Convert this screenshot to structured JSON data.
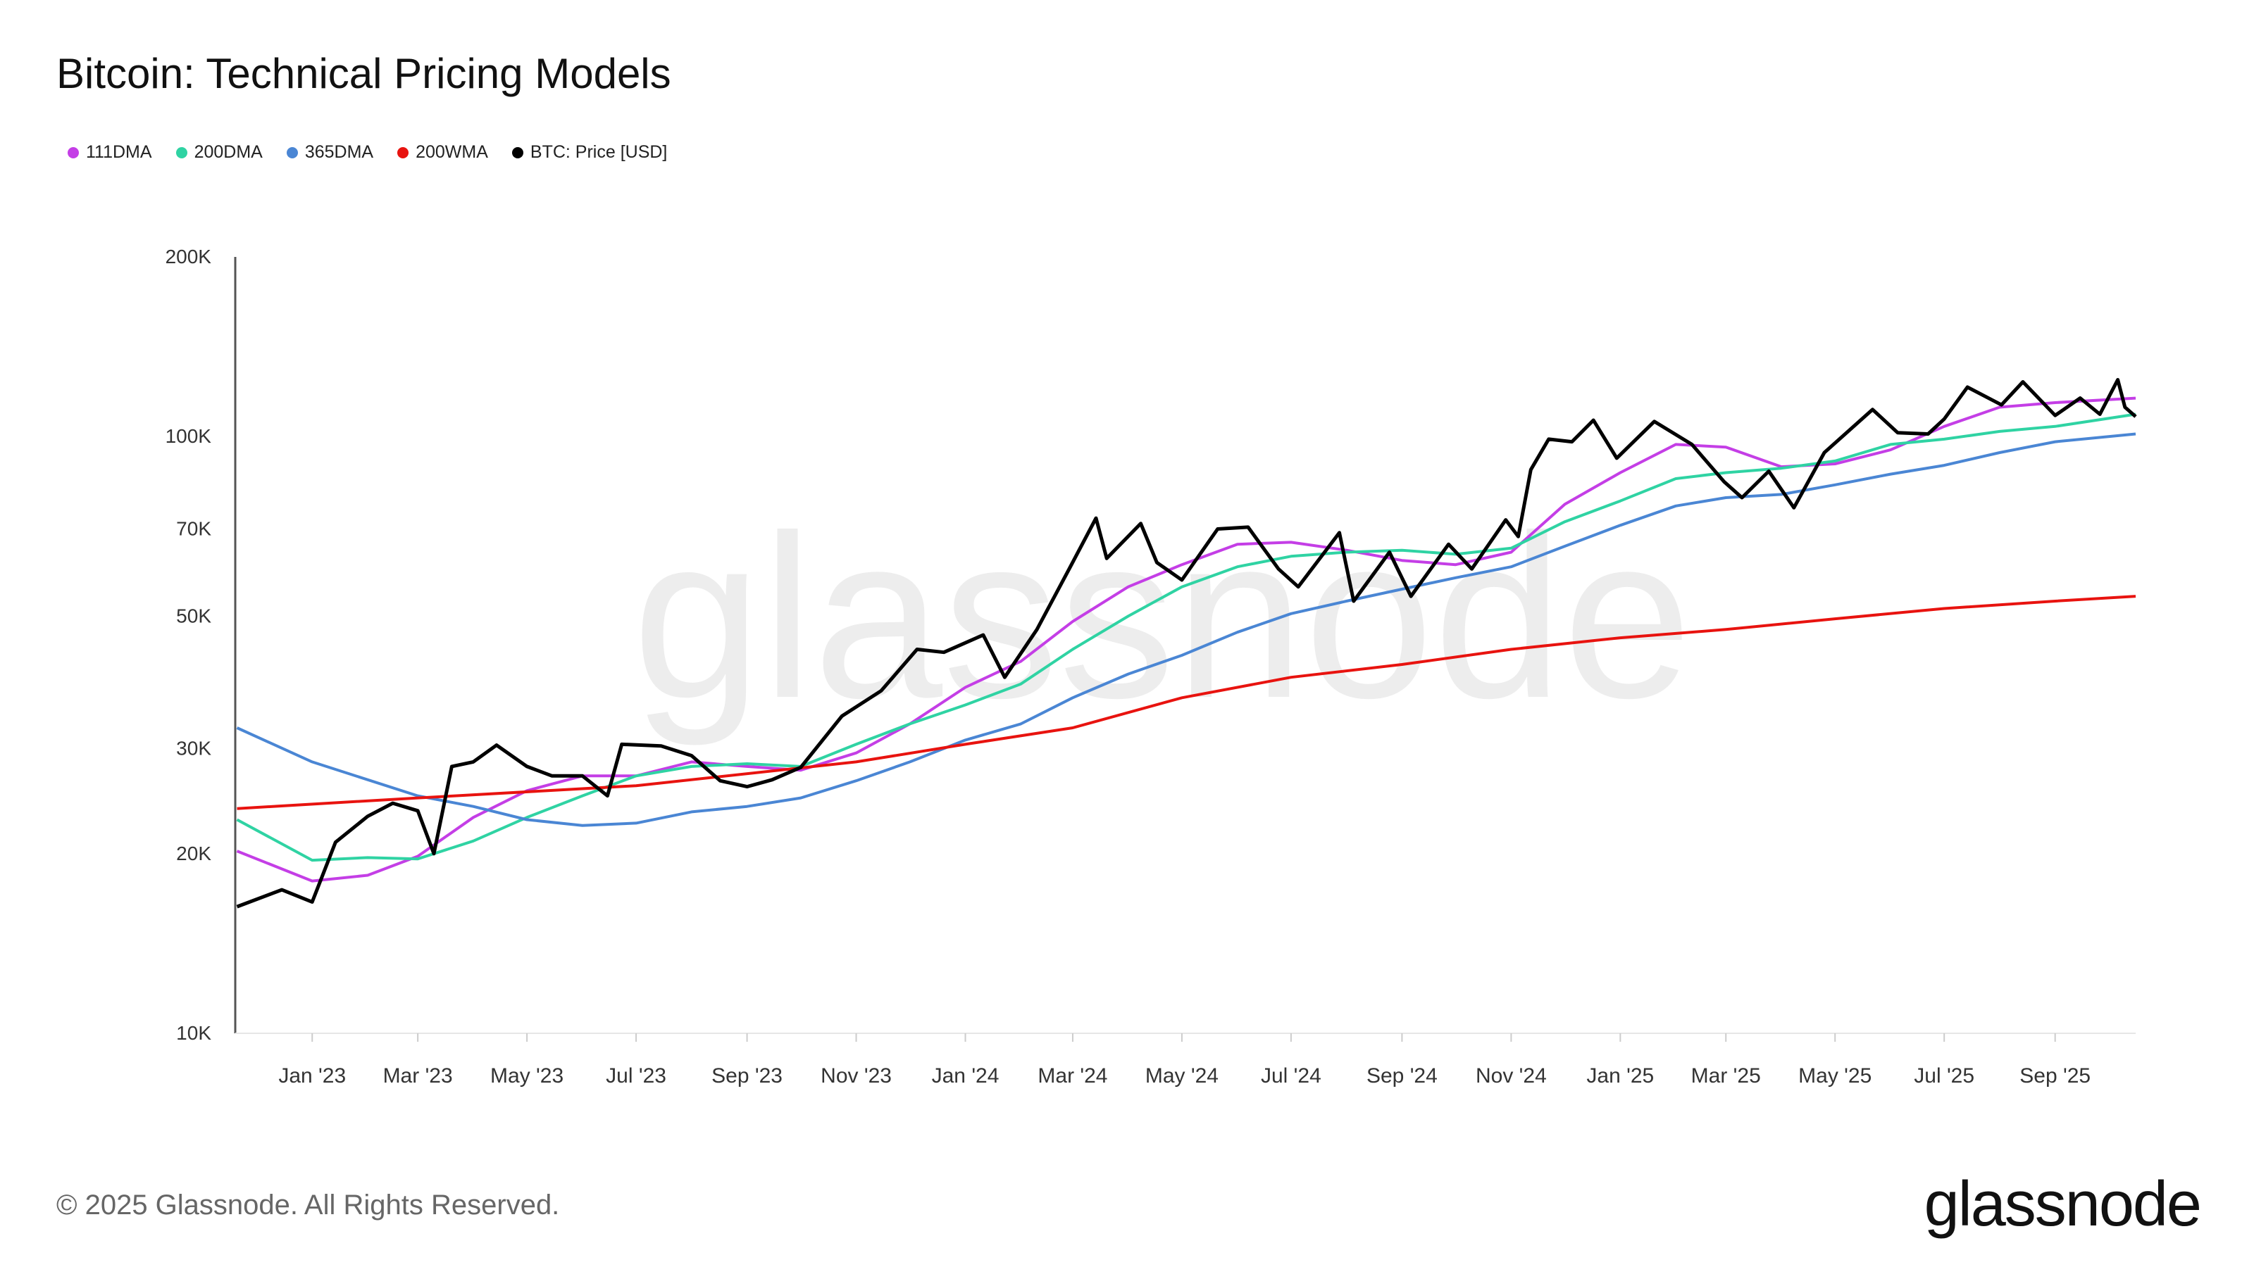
{
  "title": "Bitcoin: Technical Pricing Models",
  "footer": "© 2025 Glassnode. All Rights Reserved.",
  "logo_text": "glassnode",
  "watermark": "glassnode",
  "chart_data": {
    "type": "line",
    "title": "Bitcoin: Technical Pricing Models",
    "y_scale": "log",
    "ylim": [
      10000,
      200000
    ],
    "xlim": [
      "2022-11-19",
      "2025-10-16"
    ],
    "grid": false,
    "legend_position": "top-left",
    "y_ticks": [
      {
        "value": 10000,
        "label": "10K"
      },
      {
        "value": 20000,
        "label": "20K"
      },
      {
        "value": 30000,
        "label": "30K"
      },
      {
        "value": 50000,
        "label": "50K"
      },
      {
        "value": 70000,
        "label": "70K"
      },
      {
        "value": 100000,
        "label": "100K"
      },
      {
        "value": 200000,
        "label": "200K"
      }
    ],
    "x_ticks": [
      {
        "date": "2023-01-01",
        "label": "Jan '23"
      },
      {
        "date": "2023-03-01",
        "label": "Mar '23"
      },
      {
        "date": "2023-05-01",
        "label": "May '23"
      },
      {
        "date": "2023-07-01",
        "label": "Jul '23"
      },
      {
        "date": "2023-09-01",
        "label": "Sep '23"
      },
      {
        "date": "2023-11-01",
        "label": "Nov '23"
      },
      {
        "date": "2024-01-01",
        "label": "Jan '24"
      },
      {
        "date": "2024-03-01",
        "label": "Mar '24"
      },
      {
        "date": "2024-05-01",
        "label": "May '24"
      },
      {
        "date": "2024-07-01",
        "label": "Jul '24"
      },
      {
        "date": "2024-09-01",
        "label": "Sep '24"
      },
      {
        "date": "2024-11-01",
        "label": "Nov '24"
      },
      {
        "date": "2025-01-01",
        "label": "Jan '25"
      },
      {
        "date": "2025-03-01",
        "label": "Mar '25"
      },
      {
        "date": "2025-05-01",
        "label": "May '25"
      },
      {
        "date": "2025-07-01",
        "label": "Jul '25"
      },
      {
        "date": "2025-09-01",
        "label": "Sep '25"
      }
    ],
    "series": [
      {
        "name": "111DMA",
        "color": "#c43ee6",
        "width": 4,
        "points": [
          [
            "2022-11-20",
            20200
          ],
          [
            "2023-01-01",
            18000
          ],
          [
            "2023-02-01",
            18400
          ],
          [
            "2023-03-01",
            19800
          ],
          [
            "2023-04-01",
            23000
          ],
          [
            "2023-05-01",
            25500
          ],
          [
            "2023-06-01",
            27000
          ],
          [
            "2023-07-01",
            27000
          ],
          [
            "2023-08-01",
            28500
          ],
          [
            "2023-09-01",
            28000
          ],
          [
            "2023-10-01",
            27600
          ],
          [
            "2023-11-01",
            29500
          ],
          [
            "2023-12-01",
            33000
          ],
          [
            "2024-01-01",
            38000
          ],
          [
            "2024-02-01",
            42000
          ],
          [
            "2024-03-01",
            49000
          ],
          [
            "2024-04-01",
            56000
          ],
          [
            "2024-05-01",
            61000
          ],
          [
            "2024-06-01",
            66000
          ],
          [
            "2024-07-01",
            66500
          ],
          [
            "2024-08-01",
            64500
          ],
          [
            "2024-09-01",
            62000
          ],
          [
            "2024-10-01",
            61000
          ],
          [
            "2024-11-01",
            64000
          ],
          [
            "2024-12-01",
            77000
          ],
          [
            "2025-01-01",
            87000
          ],
          [
            "2025-02-01",
            97000
          ],
          [
            "2025-03-01",
            96000
          ],
          [
            "2025-04-01",
            89000
          ],
          [
            "2025-05-01",
            90000
          ],
          [
            "2025-06-01",
            95000
          ],
          [
            "2025-07-01",
            104000
          ],
          [
            "2025-08-01",
            112000
          ],
          [
            "2025-09-01",
            114000
          ],
          [
            "2025-10-16",
            116000
          ]
        ]
      },
      {
        "name": "200DMA",
        "color": "#2fd3a3",
        "width": 4,
        "points": [
          [
            "2022-11-20",
            22800
          ],
          [
            "2023-01-01",
            19500
          ],
          [
            "2023-02-01",
            19700
          ],
          [
            "2023-03-01",
            19600
          ],
          [
            "2023-04-01",
            21000
          ],
          [
            "2023-05-01",
            23000
          ],
          [
            "2023-06-01",
            25000
          ],
          [
            "2023-07-01",
            27000
          ],
          [
            "2023-08-01",
            28000
          ],
          [
            "2023-09-01",
            28300
          ],
          [
            "2023-10-01",
            28000
          ],
          [
            "2023-11-01",
            30500
          ],
          [
            "2023-12-01",
            33000
          ],
          [
            "2024-01-01",
            35500
          ],
          [
            "2024-02-01",
            38500
          ],
          [
            "2024-03-01",
            44000
          ],
          [
            "2024-04-01",
            50000
          ],
          [
            "2024-05-01",
            56000
          ],
          [
            "2024-06-01",
            60500
          ],
          [
            "2024-07-01",
            63000
          ],
          [
            "2024-08-01",
            64000
          ],
          [
            "2024-09-01",
            64500
          ],
          [
            "2024-10-01",
            63500
          ],
          [
            "2024-11-01",
            65000
          ],
          [
            "2024-12-01",
            72000
          ],
          [
            "2025-01-01",
            78000
          ],
          [
            "2025-02-01",
            85000
          ],
          [
            "2025-03-01",
            87000
          ],
          [
            "2025-04-01",
            88500
          ],
          [
            "2025-05-01",
            91000
          ],
          [
            "2025-06-01",
            97000
          ],
          [
            "2025-07-01",
            99000
          ],
          [
            "2025-08-01",
            102000
          ],
          [
            "2025-09-01",
            104000
          ],
          [
            "2025-10-16",
            109000
          ]
        ]
      },
      {
        "name": "365DMA",
        "color": "#4a86d4",
        "width": 4,
        "points": [
          [
            "2022-11-20",
            32500
          ],
          [
            "2023-01-01",
            28500
          ],
          [
            "2023-03-01",
            25000
          ],
          [
            "2023-04-01",
            24000
          ],
          [
            "2023-05-01",
            22800
          ],
          [
            "2023-06-01",
            22300
          ],
          [
            "2023-07-01",
            22500
          ],
          [
            "2023-08-01",
            23500
          ],
          [
            "2023-09-01",
            24000
          ],
          [
            "2023-10-01",
            24800
          ],
          [
            "2023-11-01",
            26500
          ],
          [
            "2023-12-01",
            28500
          ],
          [
            "2024-01-01",
            31000
          ],
          [
            "2024-02-01",
            33000
          ],
          [
            "2024-03-01",
            36500
          ],
          [
            "2024-04-01",
            40000
          ],
          [
            "2024-05-01",
            43000
          ],
          [
            "2024-06-01",
            47000
          ],
          [
            "2024-07-01",
            50500
          ],
          [
            "2024-08-01",
            53000
          ],
          [
            "2024-09-01",
            55500
          ],
          [
            "2024-10-01",
            58000
          ],
          [
            "2024-11-01",
            60500
          ],
          [
            "2024-12-01",
            65500
          ],
          [
            "2025-01-01",
            71000
          ],
          [
            "2025-02-01",
            76500
          ],
          [
            "2025-03-01",
            79000
          ],
          [
            "2025-04-01",
            80000
          ],
          [
            "2025-05-01",
            83000
          ],
          [
            "2025-06-01",
            86500
          ],
          [
            "2025-07-01",
            89500
          ],
          [
            "2025-08-01",
            94000
          ],
          [
            "2025-09-01",
            98000
          ],
          [
            "2025-10-16",
            101000
          ]
        ]
      },
      {
        "name": "200WMA",
        "color": "#e8130f",
        "width": 4,
        "points": [
          [
            "2022-11-20",
            23800
          ],
          [
            "2023-03-01",
            24800
          ],
          [
            "2023-07-01",
            26000
          ],
          [
            "2023-11-01",
            28500
          ],
          [
            "2024-01-01",
            30500
          ],
          [
            "2024-03-01",
            32500
          ],
          [
            "2024-05-01",
            36500
          ],
          [
            "2024-07-01",
            39500
          ],
          [
            "2024-09-01",
            41500
          ],
          [
            "2024-11-01",
            44000
          ],
          [
            "2025-01-01",
            46000
          ],
          [
            "2025-03-01",
            47500
          ],
          [
            "2025-05-01",
            49500
          ],
          [
            "2025-07-01",
            51500
          ],
          [
            "2025-09-01",
            53000
          ],
          [
            "2025-10-16",
            54000
          ]
        ]
      },
      {
        "name": "BTC: Price [USD]",
        "color": "#000000",
        "width": 5,
        "points": [
          [
            "2022-11-20",
            16300
          ],
          [
            "2022-12-15",
            17400
          ],
          [
            "2023-01-01",
            16600
          ],
          [
            "2023-01-14",
            20900
          ],
          [
            "2023-02-01",
            23100
          ],
          [
            "2023-02-15",
            24300
          ],
          [
            "2023-03-01",
            23600
          ],
          [
            "2023-03-10",
            20000
          ],
          [
            "2023-03-20",
            28000
          ],
          [
            "2023-04-01",
            28500
          ],
          [
            "2023-04-14",
            30400
          ],
          [
            "2023-05-01",
            28000
          ],
          [
            "2023-05-15",
            27000
          ],
          [
            "2023-06-01",
            27000
          ],
          [
            "2023-06-15",
            25000
          ],
          [
            "2023-06-23",
            30500
          ],
          [
            "2023-07-15",
            30300
          ],
          [
            "2023-08-01",
            29200
          ],
          [
            "2023-08-17",
            26500
          ],
          [
            "2023-09-01",
            25900
          ],
          [
            "2023-09-15",
            26600
          ],
          [
            "2023-10-01",
            27900
          ],
          [
            "2023-10-24",
            34000
          ],
          [
            "2023-11-15",
            37500
          ],
          [
            "2023-12-05",
            44000
          ],
          [
            "2023-12-20",
            43500
          ],
          [
            "2024-01-11",
            46500
          ],
          [
            "2024-01-23",
            39500
          ],
          [
            "2024-02-10",
            47500
          ],
          [
            "2024-02-28",
            60000
          ],
          [
            "2024-03-14",
            73000
          ],
          [
            "2024-03-20",
            62500
          ],
          [
            "2024-04-08",
            71500
          ],
          [
            "2024-04-17",
            61500
          ],
          [
            "2024-05-01",
            57500
          ],
          [
            "2024-05-21",
            70000
          ],
          [
            "2024-06-07",
            70500
          ],
          [
            "2024-06-24",
            60000
          ],
          [
            "2024-07-05",
            56000
          ],
          [
            "2024-07-28",
            69000
          ],
          [
            "2024-08-05",
            53000
          ],
          [
            "2024-08-25",
            64000
          ],
          [
            "2024-09-06",
            54000
          ],
          [
            "2024-09-27",
            66000
          ],
          [
            "2024-10-10",
            60000
          ],
          [
            "2024-10-29",
            72500
          ],
          [
            "2024-11-05",
            68000
          ],
          [
            "2024-11-12",
            88000
          ],
          [
            "2024-11-22",
            99000
          ],
          [
            "2024-12-05",
            98000
          ],
          [
            "2024-12-17",
            106500
          ],
          [
            "2024-12-30",
            92000
          ],
          [
            "2025-01-20",
            106000
          ],
          [
            "2025-02-10",
            97000
          ],
          [
            "2025-02-28",
            84000
          ],
          [
            "2025-03-10",
            79000
          ],
          [
            "2025-03-25",
            87500
          ],
          [
            "2025-04-08",
            76000
          ],
          [
            "2025-04-25",
            94000
          ],
          [
            "2025-05-22",
            111000
          ],
          [
            "2025-06-05",
            101500
          ],
          [
            "2025-06-22",
            101000
          ],
          [
            "2025-07-01",
            107000
          ],
          [
            "2025-07-14",
            121000
          ],
          [
            "2025-08-02",
            113000
          ],
          [
            "2025-08-14",
            123500
          ],
          [
            "2025-09-01",
            108500
          ],
          [
            "2025-09-15",
            116000
          ],
          [
            "2025-09-26",
            109000
          ],
          [
            "2025-10-06",
            124500
          ],
          [
            "2025-10-10",
            112000
          ],
          [
            "2025-10-16",
            108000
          ]
        ]
      }
    ]
  }
}
